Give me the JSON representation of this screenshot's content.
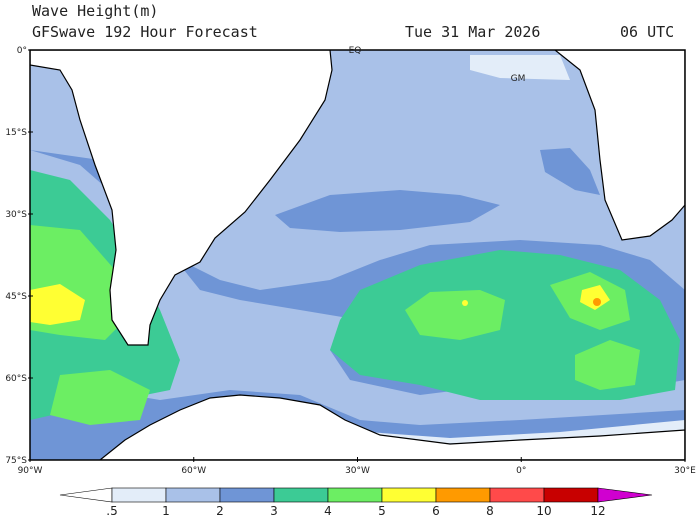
{
  "header": {
    "title": "Wave Height(m)",
    "subtitle": "GFSwave 192 Hour Forecast",
    "valid_time": "Tue 31 Mar 2026",
    "utc": "06 UTC"
  },
  "map": {
    "lat_labels": [
      "0°",
      "15°S",
      "30°S",
      "45°S",
      "60°S",
      "75°S"
    ],
    "lon_labels": [
      "90°W",
      "60°W",
      "30°W",
      "0°",
      "30°E"
    ],
    "markers": [
      "EQ",
      "GM"
    ]
  },
  "colorbar": {
    "labels": [
      ".5",
      "1",
      "2",
      "3",
      "4",
      "5",
      "6",
      "8",
      "10",
      "12"
    ],
    "colors": [
      "#ffffff",
      "#e3edf9",
      "#a9c1e8",
      "#6f95d6",
      "#3ccb95",
      "#6cee63",
      "#ffff33",
      "#ff9a00",
      "#ff4a4a",
      "#c80000",
      "#d000d0"
    ]
  }
}
